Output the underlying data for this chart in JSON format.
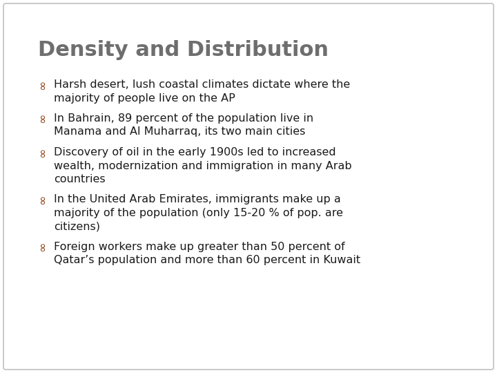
{
  "title": "Density and Distribution",
  "title_color": "#6e6e6e",
  "title_fontsize": 22,
  "bullet_color": "#8B3A0F",
  "text_color": "#1a1a1a",
  "bullet_fontsize": 11.5,
  "background_color": "#ffffff",
  "border_color": "#c0c0c0",
  "bullet_symbol": "∞",
  "bullets": [
    {
      "lines": [
        "Harsh desert, lush coastal climates dictate where the",
        "majority of people live on the AP"
      ]
    },
    {
      "lines": [
        "In Bahrain, 89 percent of the population live in",
        "Manama and Al Muharraq, its two main cities"
      ]
    },
    {
      "lines": [
        "Discovery of oil in the early 1900s led to increased",
        "wealth, modernization and immigration in many Arab",
        "countries"
      ]
    },
    {
      "lines": [
        "In the United Arab Emirates, immigrants make up a",
        "majority of the population (only 15-20 % of pop. are",
        "citizens)"
      ]
    },
    {
      "lines": [
        "Foreign workers make up greater than 50 percent of",
        "Qatar’s population and more than 60 percent in Kuwait"
      ]
    }
  ]
}
